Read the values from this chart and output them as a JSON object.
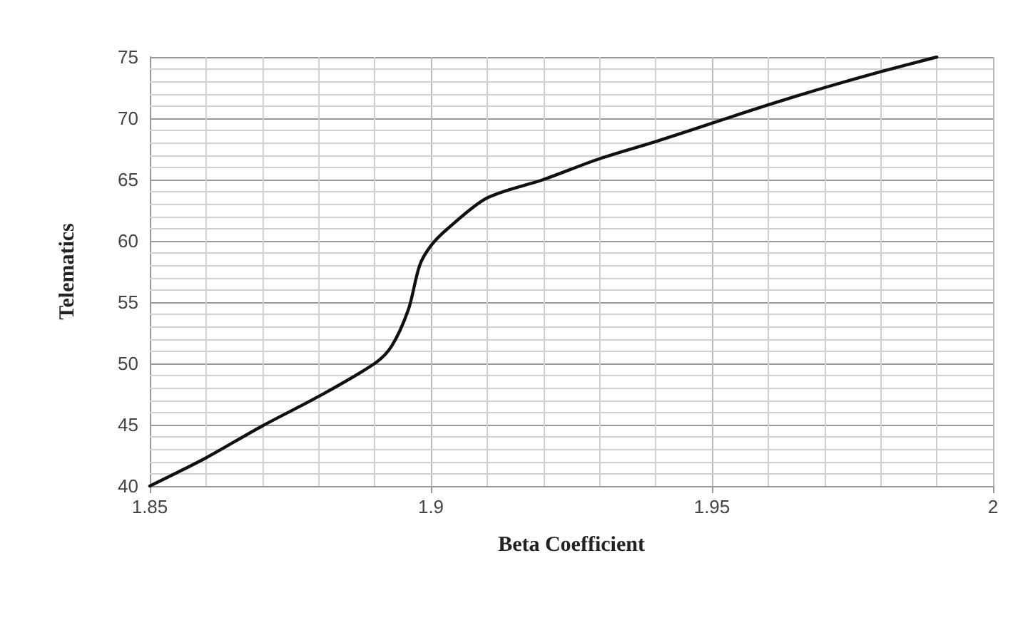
{
  "chart_data": {
    "type": "line",
    "xlabel": "Beta Coefficient",
    "ylabel": "Telematics",
    "x": [
      1.85,
      1.86,
      1.87,
      1.88,
      1.89,
      1.893,
      1.896,
      1.898,
      1.9,
      1.903,
      1.91,
      1.92,
      1.93,
      1.94,
      1.95,
      1.96,
      1.97,
      1.98,
      1.99
    ],
    "series": [
      {
        "color": "#111111",
        "values": [
          40,
          42.3,
          44.9,
          47.3,
          50,
          51.4,
          54.4,
          58,
          59.6,
          61,
          63.5,
          65,
          66.7,
          68.1,
          69.6,
          71.1,
          72.5,
          73.8,
          75
        ]
      }
    ],
    "xlim": [
      1.85,
      2
    ],
    "xticks": [
      1.85,
      1.9,
      1.95,
      2
    ],
    "ylim": [
      40,
      75
    ],
    "yticks": [
      40,
      45,
      50,
      55,
      60,
      65,
      70,
      75
    ],
    "grid": true,
    "marker": "none",
    "line_style": "solid"
  }
}
